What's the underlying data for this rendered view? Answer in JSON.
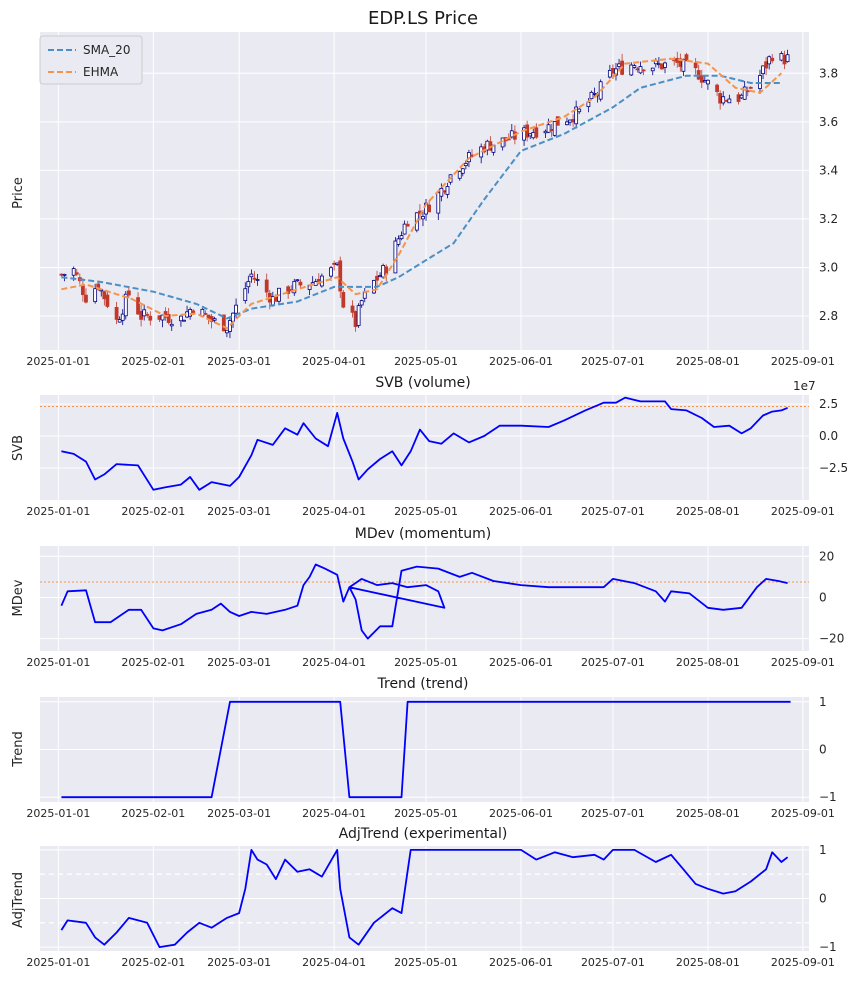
{
  "figure": {
    "background": "#ffffff",
    "plot_bg": "#eaeaf2",
    "grid_color": "#ffffff"
  },
  "chart_data": [
    {
      "type": "candlestick",
      "title": "EDP.LS Price",
      "ylabel": "Price",
      "x_ticks": [
        "2025-01-01",
        "2025-02-01",
        "2025-03-01",
        "2025-04-01",
        "2025-05-01",
        "2025-06-01",
        "2025-07-01",
        "2025-08-01",
        "2025-09-01"
      ],
      "y_ticks": [
        2.8,
        3.0,
        3.2,
        3.4,
        3.6,
        3.8
      ],
      "ylim": [
        2.66,
        3.97
      ],
      "up_color": "#000080",
      "down_color": "#c0392b",
      "legend": {
        "placement": "upper-left",
        "entries": [
          "SMA_20",
          "EHMA"
        ]
      },
      "close_anchors": [
        [
          "2025-01-02",
          2.97
        ],
        [
          "2025-01-06",
          2.99
        ],
        [
          "2025-01-10",
          2.88
        ],
        [
          "2025-01-14",
          2.93
        ],
        [
          "2025-01-20",
          2.78
        ],
        [
          "2025-01-24",
          2.89
        ],
        [
          "2025-01-28",
          2.8
        ],
        [
          "2025-02-03",
          2.8
        ],
        [
          "2025-02-10",
          2.79
        ],
        [
          "2025-02-14",
          2.84
        ],
        [
          "2025-02-20",
          2.78
        ],
        [
          "2025-02-25",
          2.76
        ],
        [
          "2025-03-01",
          2.86
        ],
        [
          "2025-03-05",
          2.97
        ],
        [
          "2025-03-12",
          2.87
        ],
        [
          "2025-03-18",
          2.92
        ],
        [
          "2025-03-25",
          2.94
        ],
        [
          "2025-04-02",
          3.0
        ],
        [
          "2025-04-04",
          2.85
        ],
        [
          "2025-04-08",
          2.77
        ],
        [
          "2025-04-10",
          2.86
        ],
        [
          "2025-04-14",
          2.94
        ],
        [
          "2025-04-18",
          3.0
        ],
        [
          "2025-04-22",
          3.12
        ],
        [
          "2025-04-25",
          3.2
        ],
        [
          "2025-04-30",
          3.23
        ],
        [
          "2025-05-05",
          3.3
        ],
        [
          "2025-05-10",
          3.4
        ],
        [
          "2025-05-15",
          3.45
        ],
        [
          "2025-05-20",
          3.5
        ],
        [
          "2025-05-26",
          3.52
        ],
        [
          "2025-06-01",
          3.55
        ],
        [
          "2025-06-10",
          3.58
        ],
        [
          "2025-06-20",
          3.64
        ],
        [
          "2025-06-26",
          3.72
        ],
        [
          "2025-07-01",
          3.81
        ],
        [
          "2025-07-08",
          3.84
        ],
        [
          "2025-07-15",
          3.83
        ],
        [
          "2025-07-22",
          3.84
        ],
        [
          "2025-07-29",
          3.8
        ],
        [
          "2025-08-05",
          3.7
        ],
        [
          "2025-08-12",
          3.7
        ],
        [
          "2025-08-18",
          3.79
        ],
        [
          "2025-08-22",
          3.88
        ],
        [
          "2025-08-25",
          3.86
        ]
      ],
      "series": [
        {
          "name": "SMA_20",
          "color": "#4c8fc4",
          "dash": true,
          "points": [
            [
              "2025-01-02",
              2.96
            ],
            [
              "2025-01-15",
              2.94
            ],
            [
              "2025-02-01",
              2.9
            ],
            [
              "2025-02-15",
              2.85
            ],
            [
              "2025-02-25",
              2.79
            ],
            [
              "2025-03-05",
              2.83
            ],
            [
              "2025-03-20",
              2.86
            ],
            [
              "2025-04-01",
              2.92
            ],
            [
              "2025-04-15",
              2.92
            ],
            [
              "2025-04-22",
              2.96
            ],
            [
              "2025-05-01",
              3.03
            ],
            [
              "2025-05-10",
              3.1
            ],
            [
              "2025-05-20",
              3.28
            ],
            [
              "2025-06-01",
              3.48
            ],
            [
              "2025-06-15",
              3.55
            ],
            [
              "2025-07-01",
              3.66
            ],
            [
              "2025-07-10",
              3.74
            ],
            [
              "2025-07-25",
              3.79
            ],
            [
              "2025-08-05",
              3.79
            ],
            [
              "2025-08-15",
              3.76
            ],
            [
              "2025-08-25",
              3.76
            ]
          ]
        },
        {
          "name": "EHMA",
          "color": "#f5944a",
          "dash": true,
          "points": [
            [
              "2025-01-02",
              2.91
            ],
            [
              "2025-01-10",
              2.93
            ],
            [
              "2025-01-25",
              2.87
            ],
            [
              "2025-02-05",
              2.8
            ],
            [
              "2025-02-15",
              2.81
            ],
            [
              "2025-02-25",
              2.75
            ],
            [
              "2025-03-05",
              2.85
            ],
            [
              "2025-03-15",
              2.89
            ],
            [
              "2025-03-25",
              2.93
            ],
            [
              "2025-04-02",
              2.96
            ],
            [
              "2025-04-08",
              2.89
            ],
            [
              "2025-04-15",
              2.91
            ],
            [
              "2025-04-22",
              3.05
            ],
            [
              "2025-05-01",
              3.26
            ],
            [
              "2025-05-15",
              3.45
            ],
            [
              "2025-06-01",
              3.56
            ],
            [
              "2025-06-15",
              3.62
            ],
            [
              "2025-06-25",
              3.7
            ],
            [
              "2025-07-05",
              3.84
            ],
            [
              "2025-07-20",
              3.86
            ],
            [
              "2025-08-01",
              3.84
            ],
            [
              "2025-08-10",
              3.74
            ],
            [
              "2025-08-18",
              3.72
            ],
            [
              "2025-08-25",
              3.8
            ]
          ]
        }
      ]
    },
    {
      "type": "line",
      "title": "SVB (volume)",
      "ylabel": "SVB",
      "offset_text": "1e7",
      "y_ticks": [
        2.5,
        0.0,
        -2.5
      ],
      "y_tick_labels": [
        "2.5",
        "0.0",
        "−2.5"
      ],
      "ylim": [
        -5.0,
        3.2
      ],
      "hline": {
        "y": 2.3,
        "color": "#f5944a",
        "dotted": true
      },
      "line_color": "#0000ff",
      "points": [
        [
          "2025-01-02",
          -1.2
        ],
        [
          "2025-01-06",
          -1.4
        ],
        [
          "2025-01-10",
          -2.0
        ],
        [
          "2025-01-13",
          -3.4
        ],
        [
          "2025-01-16",
          -3.0
        ],
        [
          "2025-01-20",
          -2.2
        ],
        [
          "2025-01-27",
          -2.3
        ],
        [
          "2025-02-01",
          -4.2
        ],
        [
          "2025-02-05",
          -4.0
        ],
        [
          "2025-02-10",
          -3.8
        ],
        [
          "2025-02-13",
          -3.2
        ],
        [
          "2025-02-16",
          -4.2
        ],
        [
          "2025-02-20",
          -3.6
        ],
        [
          "2025-02-26",
          -3.9
        ],
        [
          "2025-03-01",
          -3.2
        ],
        [
          "2025-03-05",
          -1.5
        ],
        [
          "2025-03-07",
          -0.3
        ],
        [
          "2025-03-12",
          -0.7
        ],
        [
          "2025-03-16",
          0.6
        ],
        [
          "2025-03-20",
          0.1
        ],
        [
          "2025-03-22",
          1.0
        ],
        [
          "2025-03-26",
          -0.2
        ],
        [
          "2025-03-30",
          -0.8
        ],
        [
          "2025-04-02",
          1.8
        ],
        [
          "2025-04-04",
          -0.2
        ],
        [
          "2025-04-07",
          -2.0
        ],
        [
          "2025-04-09",
          -3.4
        ],
        [
          "2025-04-12",
          -2.6
        ],
        [
          "2025-04-16",
          -1.8
        ],
        [
          "2025-04-20",
          -1.2
        ],
        [
          "2025-04-23",
          -2.3
        ],
        [
          "2025-04-26",
          -1.2
        ],
        [
          "2025-04-29",
          0.5
        ],
        [
          "2025-05-02",
          -0.4
        ],
        [
          "2025-05-06",
          -0.6
        ],
        [
          "2025-05-10",
          0.2
        ],
        [
          "2025-05-15",
          -0.5
        ],
        [
          "2025-05-20",
          0.0
        ],
        [
          "2025-05-25",
          0.8
        ],
        [
          "2025-06-01",
          0.8
        ],
        [
          "2025-06-10",
          0.7
        ],
        [
          "2025-06-15",
          1.2
        ],
        [
          "2025-06-22",
          2.0
        ],
        [
          "2025-06-28",
          2.6
        ],
        [
          "2025-07-02",
          2.6
        ],
        [
          "2025-07-05",
          3.0
        ],
        [
          "2025-07-10",
          2.7
        ],
        [
          "2025-07-18",
          2.7
        ],
        [
          "2025-07-20",
          2.1
        ],
        [
          "2025-07-25",
          2.0
        ],
        [
          "2025-07-30",
          1.4
        ],
        [
          "2025-08-03",
          0.7
        ],
        [
          "2025-08-08",
          0.8
        ],
        [
          "2025-08-12",
          0.2
        ],
        [
          "2025-08-15",
          0.6
        ],
        [
          "2025-08-19",
          1.6
        ],
        [
          "2025-08-22",
          1.9
        ],
        [
          "2025-08-25",
          2.0
        ],
        [
          "2025-08-27",
          2.2
        ]
      ]
    },
    {
      "type": "line",
      "title": "MDev (momentum)",
      "ylabel": "MDev",
      "y_ticks": [
        20,
        0,
        -20
      ],
      "y_tick_labels": [
        "20",
        "0",
        "−20"
      ],
      "ylim": [
        -26,
        25
      ],
      "hline": {
        "y": 7.5,
        "color": "#f5944a",
        "dotted": true
      },
      "line_color": "#0000ff",
      "points": [
        [
          "2025-01-02",
          -4
        ],
        [
          "2025-01-04",
          3
        ],
        [
          "2025-01-10",
          3.5
        ],
        [
          "2025-01-13",
          -12
        ],
        [
          "2025-01-18",
          -12
        ],
        [
          "2025-01-24",
          -6
        ],
        [
          "2025-01-28",
          -6
        ],
        [
          "2025-02-01",
          -15
        ],
        [
          "2025-02-04",
          -16
        ],
        [
          "2025-02-10",
          -13
        ],
        [
          "2025-02-15",
          -8
        ],
        [
          "2025-02-20",
          -6
        ],
        [
          "2025-02-23",
          -3
        ],
        [
          "2025-02-26",
          -7
        ],
        [
          "2025-03-01",
          -9
        ],
        [
          "2025-03-05",
          -7
        ],
        [
          "2025-03-10",
          -8
        ],
        [
          "2025-03-16",
          -6
        ],
        [
          "2025-03-20",
          -4
        ],
        [
          "2025-03-22",
          6
        ],
        [
          "2025-03-24",
          10
        ],
        [
          "2025-03-26",
          16
        ],
        [
          "2025-03-29",
          14
        ],
        [
          "2025-04-02",
          11
        ],
        [
          "2025-04-04",
          -2
        ],
        [
          "2025-04-06",
          5
        ],
        [
          "2025-04-10",
          9
        ],
        [
          "2025-04-15",
          6
        ],
        [
          "2025-04-20",
          7
        ],
        [
          "2025-04-25",
          5
        ],
        [
          "2025-05-01",
          6
        ],
        [
          "2025-05-05",
          3
        ],
        [
          "2025-05-07",
          -5
        ],
        [
          "2025-04-06",
          5
        ],
        [
          "2025-04-08",
          -1
        ],
        [
          "2025-04-10",
          -16
        ],
        [
          "2025-04-12",
          -20
        ],
        [
          "2025-04-16",
          -14
        ],
        [
          "2025-04-20",
          -14
        ],
        [
          "2025-04-23",
          13
        ],
        [
          "2025-04-28",
          15
        ],
        [
          "2025-05-05",
          14
        ],
        [
          "2025-05-12",
          10
        ],
        [
          "2025-05-16",
          12
        ],
        [
          "2025-05-23",
          8
        ],
        [
          "2025-06-01",
          6
        ],
        [
          "2025-06-10",
          5
        ],
        [
          "2025-06-20",
          5
        ],
        [
          "2025-06-28",
          5
        ],
        [
          "2025-07-01",
          9
        ],
        [
          "2025-07-08",
          7
        ],
        [
          "2025-07-15",
          3
        ],
        [
          "2025-07-18",
          -2
        ],
        [
          "2025-07-20",
          3
        ],
        [
          "2025-07-26",
          2
        ],
        [
          "2025-08-01",
          -5
        ],
        [
          "2025-08-06",
          -6
        ],
        [
          "2025-08-12",
          -5
        ],
        [
          "2025-08-17",
          5
        ],
        [
          "2025-08-20",
          9
        ],
        [
          "2025-08-24",
          8
        ],
        [
          "2025-08-27",
          7
        ]
      ]
    },
    {
      "type": "line",
      "title": "Trend (trend)",
      "ylabel": "Trend",
      "y_ticks": [
        1,
        0,
        -1
      ],
      "y_tick_labels": [
        "1",
        "0",
        "−1"
      ],
      "ylim": [
        -1.1,
        1.1
      ],
      "line_color": "#0000ff",
      "points": [
        [
          "2025-01-02",
          -1
        ],
        [
          "2025-02-20",
          -1
        ],
        [
          "2025-02-26",
          1
        ],
        [
          "2025-04-03",
          1
        ],
        [
          "2025-04-06",
          -1
        ],
        [
          "2025-04-23",
          -1
        ],
        [
          "2025-04-25",
          1
        ],
        [
          "2025-08-28",
          1
        ]
      ]
    },
    {
      "type": "line",
      "title": "AdjTrend (experimental)",
      "ylabel": "AdjTrend",
      "y_ticks": [
        1,
        0,
        -1
      ],
      "y_tick_labels": [
        "1",
        "0",
        "−1"
      ],
      "ylim": [
        -1.08,
        1.08
      ],
      "hlines": [
        {
          "y": 0.5,
          "color": "#ffffff",
          "dashed": true
        },
        {
          "y": -0.5,
          "color": "#ffffff",
          "dashed": true
        }
      ],
      "line_color": "#0000ff",
      "points": [
        [
          "2025-01-02",
          -0.65
        ],
        [
          "2025-01-04",
          -0.45
        ],
        [
          "2025-01-10",
          -0.5
        ],
        [
          "2025-01-13",
          -0.8
        ],
        [
          "2025-01-16",
          -0.95
        ],
        [
          "2025-01-20",
          -0.7
        ],
        [
          "2025-01-24",
          -0.4
        ],
        [
          "2025-01-30",
          -0.5
        ],
        [
          "2025-02-03",
          -1.0
        ],
        [
          "2025-02-08",
          -0.95
        ],
        [
          "2025-02-12",
          -0.7
        ],
        [
          "2025-02-16",
          -0.5
        ],
        [
          "2025-02-20",
          -0.6
        ],
        [
          "2025-02-25",
          -0.4
        ],
        [
          "2025-03-01",
          -0.3
        ],
        [
          "2025-03-03",
          0.2
        ],
        [
          "2025-03-05",
          1.0
        ],
        [
          "2025-03-07",
          0.8
        ],
        [
          "2025-03-10",
          0.7
        ],
        [
          "2025-03-13",
          0.4
        ],
        [
          "2025-03-16",
          0.8
        ],
        [
          "2025-03-20",
          0.55
        ],
        [
          "2025-03-24",
          0.6
        ],
        [
          "2025-03-28",
          0.45
        ],
        [
          "2025-04-02",
          1.0
        ],
        [
          "2025-04-03",
          0.2
        ],
        [
          "2025-04-06",
          -0.8
        ],
        [
          "2025-04-09",
          -0.95
        ],
        [
          "2025-04-14",
          -0.5
        ],
        [
          "2025-04-20",
          -0.2
        ],
        [
          "2025-04-23",
          -0.3
        ],
        [
          "2025-04-26",
          1.0
        ],
        [
          "2025-05-05",
          1.0
        ],
        [
          "2025-05-20",
          1.0
        ],
        [
          "2025-06-01",
          1.0
        ],
        [
          "2025-06-06",
          0.8
        ],
        [
          "2025-06-12",
          0.95
        ],
        [
          "2025-06-18",
          0.85
        ],
        [
          "2025-06-25",
          0.9
        ],
        [
          "2025-06-28",
          0.8
        ],
        [
          "2025-07-01",
          1.0
        ],
        [
          "2025-07-08",
          1.0
        ],
        [
          "2025-07-15",
          0.75
        ],
        [
          "2025-07-20",
          0.9
        ],
        [
          "2025-07-24",
          0.6
        ],
        [
          "2025-07-28",
          0.3
        ],
        [
          "2025-08-01",
          0.2
        ],
        [
          "2025-08-06",
          0.1
        ],
        [
          "2025-08-10",
          0.15
        ],
        [
          "2025-08-15",
          0.35
        ],
        [
          "2025-08-20",
          0.6
        ],
        [
          "2025-08-22",
          0.95
        ],
        [
          "2025-08-25",
          0.75
        ],
        [
          "2025-08-27",
          0.85
        ]
      ]
    }
  ]
}
